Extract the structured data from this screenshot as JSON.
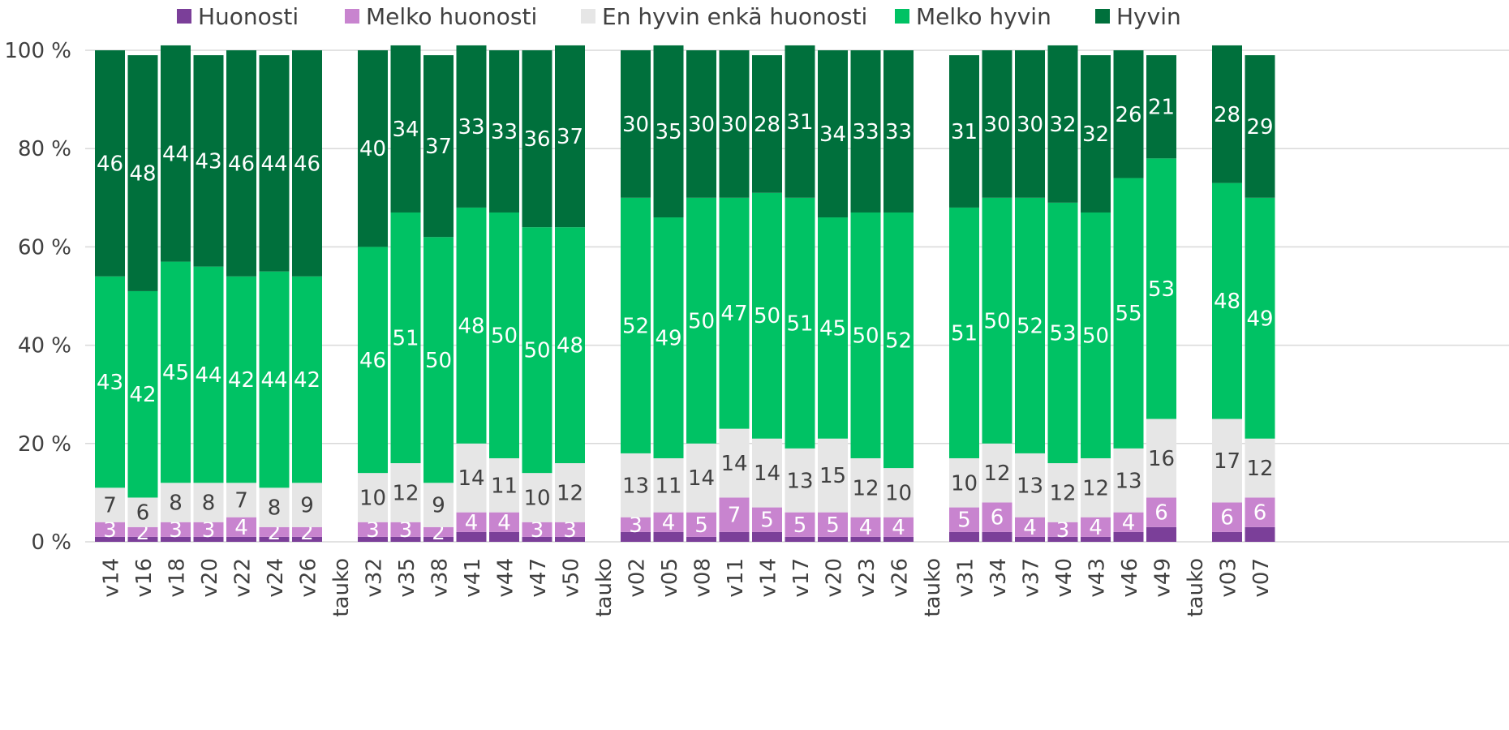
{
  "chart_data": {
    "type": "bar",
    "stacked": true,
    "percent": true,
    "categories": [
      "v14",
      "v16",
      "v18",
      "v20",
      "v22",
      "v24",
      "v26",
      "tauko",
      "v32",
      "v35",
      "v38",
      "v41",
      "v44",
      "v47",
      "v50",
      "tauko",
      "v02",
      "v05",
      "v08",
      "v11",
      "v14",
      "v17",
      "v20",
      "v23",
      "v26",
      "tauko",
      "v31",
      "v34",
      "v37",
      "v40",
      "v43",
      "v46",
      "v49",
      "tauko",
      "v03",
      "v07"
    ],
    "series": [
      {
        "name": "Huonosti",
        "color": "#7B3F99",
        "values": [
          1,
          1,
          1,
          1,
          1,
          1,
          1,
          null,
          1,
          1,
          1,
          2,
          2,
          1,
          1,
          null,
          2,
          2,
          1,
          2,
          2,
          1,
          1,
          1,
          1,
          null,
          2,
          2,
          1,
          1,
          1,
          2,
          3,
          null,
          2,
          3
        ]
      },
      {
        "name": "Melko huonosti",
        "color": "#C884CF",
        "values": [
          3,
          2,
          3,
          3,
          4,
          2,
          2,
          null,
          3,
          3,
          2,
          4,
          4,
          3,
          3,
          null,
          3,
          4,
          5,
          7,
          5,
          5,
          5,
          4,
          4,
          null,
          5,
          6,
          4,
          3,
          4,
          4,
          6,
          null,
          6,
          6
        ]
      },
      {
        "name": "En hyvin enkä huonosti",
        "color": "#E6E6E6",
        "values": [
          7,
          6,
          8,
          8,
          7,
          8,
          9,
          null,
          10,
          12,
          9,
          14,
          11,
          10,
          12,
          null,
          13,
          11,
          14,
          14,
          14,
          13,
          15,
          12,
          10,
          null,
          10,
          12,
          13,
          12,
          12,
          13,
          16,
          null,
          17,
          12
        ]
      },
      {
        "name": "Melko hyvin",
        "color": "#00C264",
        "values": [
          43,
          42,
          45,
          44,
          42,
          44,
          42,
          null,
          46,
          51,
          50,
          48,
          50,
          50,
          48,
          null,
          52,
          49,
          50,
          47,
          50,
          51,
          45,
          50,
          52,
          null,
          51,
          50,
          52,
          53,
          50,
          55,
          53,
          null,
          48,
          49
        ]
      },
      {
        "name": "Hyvin",
        "color": "#00703C",
        "values": [
          46,
          48,
          44,
          43,
          46,
          44,
          46,
          null,
          40,
          34,
          37,
          33,
          33,
          36,
          37,
          null,
          30,
          35,
          30,
          30,
          28,
          31,
          34,
          33,
          33,
          null,
          31,
          30,
          30,
          32,
          32,
          26,
          21,
          null,
          28,
          29
        ]
      }
    ],
    "labels": {
      "Huonosti": [
        null,
        null,
        null,
        null,
        null,
        null,
        null,
        null,
        null,
        null,
        null,
        null,
        null,
        null,
        null,
        null,
        null,
        null,
        null,
        null,
        null,
        null,
        null,
        null,
        null,
        null,
        null,
        null,
        null,
        null,
        null,
        null,
        null,
        null,
        null,
        null
      ],
      "Melko huonosti": [
        "3",
        "2",
        "3",
        "3",
        "4",
        "2",
        "2",
        null,
        "3",
        "3",
        "2",
        "4",
        "4",
        "3",
        "3",
        null,
        "3",
        "4",
        "5",
        "7",
        "5",
        "5",
        "5",
        "4",
        "4",
        null,
        "5",
        "6",
        "4",
        "3",
        "4",
        "4",
        "6",
        null,
        "6",
        "6"
      ],
      "En hyvin enkä huonosti": [
        "7",
        "6",
        "8",
        "8",
        "7",
        "8",
        "9",
        null,
        "10",
        "12",
        "9",
        "14",
        "11",
        "10",
        "12",
        null,
        "13",
        "11",
        "14",
        "14",
        "14",
        "13",
        "15",
        "12",
        "10",
        null,
        "10",
        "12",
        "13",
        "12",
        "12",
        "13",
        "16",
        null,
        "17",
        "12"
      ],
      "Melko hyvin": [
        "43",
        "42",
        "45",
        "44",
        "42",
        "44",
        "42",
        null,
        "46",
        "51",
        "50",
        "48",
        "50",
        "50",
        "48",
        null,
        "52",
        "49",
        "50",
        "47",
        "50",
        "51",
        "45",
        "50",
        "52",
        null,
        "51",
        "50",
        "52",
        "53",
        "50",
        "55",
        "53",
        null,
        "48",
        "49"
      ],
      "Hyvin": [
        "46",
        "48",
        "44",
        "43",
        "46",
        "44",
        "46",
        null,
        "40",
        "34",
        "37",
        "33",
        "33",
        "36",
        "37",
        null,
        "30",
        "35",
        "30",
        "30",
        "28",
        "31",
        "34",
        "33",
        "33",
        null,
        "31",
        "30",
        "30",
        "32",
        "32",
        "26",
        "21",
        null,
        "28",
        "29"
      ]
    },
    "yticks": [
      "0 %",
      "20 %",
      "40 %",
      "60 %",
      "80 %",
      "100 %"
    ],
    "ylim": [
      0,
      100
    ],
    "grid": true,
    "legend_position": "top"
  }
}
